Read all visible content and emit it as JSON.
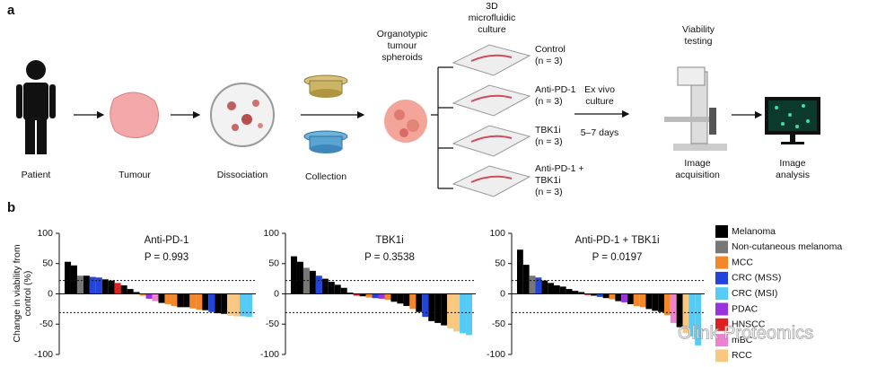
{
  "panel_a": {
    "label": "a",
    "patient": "Patient",
    "tumour": "Tumour",
    "dissociation": "Dissociation",
    "collection": "Collection",
    "spheroids": [
      "Organotypic",
      "tumour",
      "spheroids"
    ],
    "culture": [
      "3D",
      "microfluidic",
      "culture"
    ],
    "conditions": [
      [
        "Control",
        "(n = 3)"
      ],
      [
        "Anti-PD-1",
        "(n = 3)"
      ],
      [
        "TBK1i",
        "(n = 3)"
      ],
      [
        "Anti-PD-1 +",
        "TBK1i",
        "(n = 3)"
      ]
    ],
    "ex_vivo": [
      "Ex vivo",
      "culture"
    ],
    "days": "5–7 days",
    "viability": [
      "Viability",
      "testing"
    ],
    "acquisition": [
      "Image",
      "acquisition"
    ],
    "analysis": [
      "Image",
      "analysis"
    ]
  },
  "panel_b_label": "b",
  "chart_data": [
    {
      "type": "bar",
      "title": "Anti-PD-1",
      "subtitle": "P = 0.993",
      "y_label": [
        "Change in viability from",
        "control (%)"
      ],
      "ylim": [
        -100,
        100
      ],
      "yticks": [
        -100,
        -50,
        0,
        50,
        100
      ],
      "reference_lines": [
        22,
        -31
      ],
      "values": [
        53,
        47,
        30,
        30,
        28,
        27,
        24,
        22,
        18,
        14,
        8,
        3,
        -3,
        -8,
        -12,
        -15,
        -17,
        -20,
        -22,
        -22,
        -24,
        -26,
        -27,
        -30,
        -32,
        -33,
        -36,
        -37,
        -37,
        -38
      ],
      "colors": [
        "#000",
        "#000",
        "#777",
        "#000",
        "#2244dd",
        "#2244dd",
        "#000",
        "#000",
        "#e02020",
        "#000",
        "#000",
        "#000",
        "#f5872b",
        "#9933dd",
        "#f080d0",
        "#000",
        "#f5872b",
        "#f5872b",
        "#000",
        "#000",
        "#f5872b",
        "#f5872b",
        "#000",
        "#2244dd",
        "#000",
        "#000",
        "#f8c880",
        "#f8c880",
        "#55ccf5",
        "#55ccf5"
      ]
    },
    {
      "type": "bar",
      "title": "TBK1i",
      "subtitle": "P = 0.3538",
      "ylim": [
        -100,
        100
      ],
      "yticks": [
        -100,
        -50,
        0,
        50,
        100
      ],
      "reference_lines": [
        22,
        -31
      ],
      "values": [
        62,
        53,
        43,
        38,
        30,
        25,
        20,
        15,
        10,
        2,
        -3,
        -4,
        -6,
        -7,
        -8,
        -10,
        -13,
        -16,
        -20,
        -25,
        -30,
        -38,
        -45,
        -48,
        -52,
        -57,
        -62,
        -65,
        -68
      ],
      "colors": [
        "#000",
        "#000",
        "#777",
        "#000",
        "#2244dd",
        "#000",
        "#000",
        "#000",
        "#000",
        "#000",
        "#e02020",
        "#000",
        "#f5872b",
        "#2244dd",
        "#9933dd",
        "#f5872b",
        "#000",
        "#000",
        "#000",
        "#f5872b",
        "#000",
        "#2244dd",
        "#000",
        "#000",
        "#000",
        "#f8c880",
        "#f8c880",
        "#55ccf5",
        "#55ccf5"
      ]
    },
    {
      "type": "bar",
      "title": "Anti-PD-1 + TBK1i",
      "subtitle": "P = 0.0197",
      "ylim": [
        -100,
        100
      ],
      "yticks": [
        -100,
        -50,
        0,
        50,
        100
      ],
      "reference_lines": [
        22,
        -31
      ],
      "values": [
        73,
        48,
        30,
        27,
        22,
        18,
        14,
        12,
        8,
        5,
        3,
        -2,
        -3,
        -5,
        -7,
        -9,
        -12,
        -14,
        -17,
        -20,
        -22,
        -25,
        -28,
        -30,
        -35,
        -48,
        -55,
        -65,
        -70,
        -85
      ],
      "colors": [
        "#000",
        "#000",
        "#777",
        "#2244dd",
        "#000",
        "#000",
        "#000",
        "#000",
        "#000",
        "#000",
        "#000",
        "#e02020",
        "#000",
        "#2244dd",
        "#000",
        "#f5872b",
        "#000",
        "#9933dd",
        "#000",
        "#f5872b",
        "#f5872b",
        "#000",
        "#000",
        "#000",
        "#f5872b",
        "#f080d0",
        "#000",
        "#f8c880",
        "#55ccf5",
        "#55ccf5"
      ]
    }
  ],
  "legend": [
    {
      "name": "Melanoma",
      "color": "#000"
    },
    {
      "name": "Non-cutaneous melanoma",
      "color": "#777"
    },
    {
      "name": "MCC",
      "color": "#f5872b"
    },
    {
      "name": "CRC (MSS)",
      "color": "#2244dd"
    },
    {
      "name": "CRC (MSI)",
      "color": "#55ccf5"
    },
    {
      "name": "PDAC",
      "color": "#9933dd"
    },
    {
      "name": "HNSCC",
      "color": "#e02020"
    },
    {
      "name": "mBC",
      "color": "#f080d0"
    },
    {
      "name": "RCC",
      "color": "#f8c880"
    }
  ],
  "watermark": "Olink Proteomics"
}
